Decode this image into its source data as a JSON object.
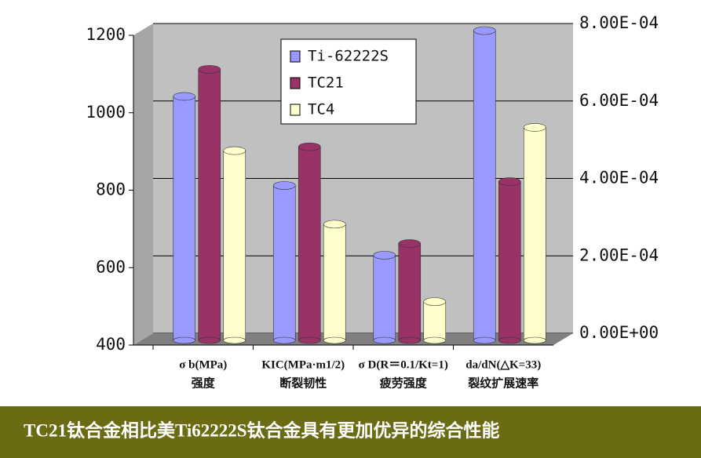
{
  "chart_data": {
    "type": "bar3d",
    "categories": [
      "σ b(MPa)",
      "KIC(MPa·m1/2)",
      "σ D(R＝0.1/Kt=1)",
      "da/dN(△K=33)"
    ],
    "category_subtitles": [
      "强度",
      "断裂韧性",
      "疲劳强度",
      "裂纹扩展速率"
    ],
    "axis_by_category": [
      "y",
      "y",
      "y",
      "y2"
    ],
    "series": [
      {
        "name": "Ti-62222S",
        "color": "#9999ff",
        "values": [
          1030,
          800,
          620,
          0.0008
        ]
      },
      {
        "name": "TC21",
        "color": "#993366",
        "values": [
          1100,
          900,
          650,
          0.00041
        ]
      },
      {
        "name": "TC4",
        "color": "#ffffcc",
        "values": [
          890,
          700,
          500,
          0.00055
        ]
      }
    ],
    "ylim": [
      400,
      1200
    ],
    "yticks": [
      400,
      600,
      800,
      1000,
      1200
    ],
    "y2lim": [
      0,
      0.0008
    ],
    "y2ticks": [
      {
        "value": 0,
        "label": "0.00E+00"
      },
      {
        "value": 0.0002,
        "label": "2.00E-04"
      },
      {
        "value": 0.0004,
        "label": "4.00E-04"
      },
      {
        "value": 0.0006,
        "label": "6.00E-04"
      },
      {
        "value": 0.0008,
        "label": "8.00E-04"
      }
    ],
    "grid": true
  },
  "banner": "TC21钛合金相比美Ti62222S钛合金具有更加优异的综合性能"
}
